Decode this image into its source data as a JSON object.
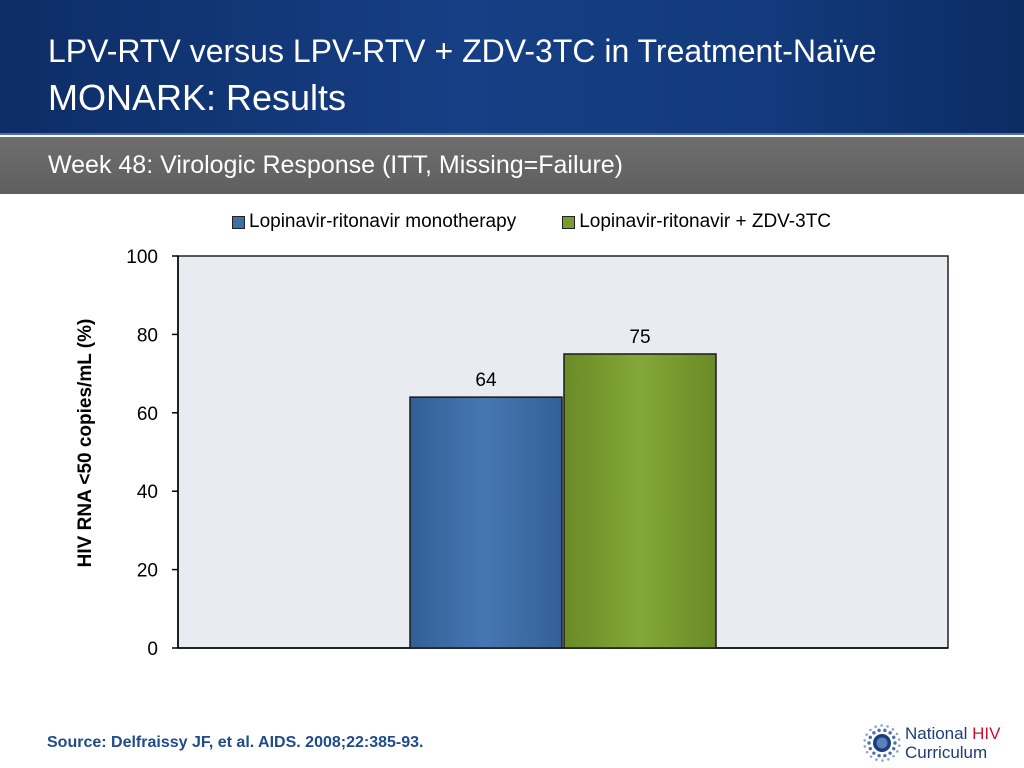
{
  "header": {
    "title_line1": "LPV-RTV versus LPV-RTV + ZDV-3TC in Treatment-Naïve",
    "title_line2": "MONARK: Results",
    "subtitle": "Week 48: Virologic Response (ITT, Missing=Failure)"
  },
  "chart_data": {
    "type": "bar",
    "title": "",
    "xlabel": "",
    "ylabel": "HIV RNA <50 copies/mL (%)",
    "ylim": [
      0,
      100
    ],
    "yticks": [
      0,
      20,
      40,
      60,
      80,
      100
    ],
    "grid": false,
    "legend_position": "top",
    "categories": [
      ""
    ],
    "series": [
      {
        "name": "Lopinavir-ritonavir monotherapy",
        "values": [
          64
        ],
        "color": "#3e6fa8"
      },
      {
        "name": "Lopinavir-ritonavir + ZDV-3TC",
        "values": [
          75
        ],
        "color": "#7a9c2f"
      }
    ],
    "plot_background": "#e8ebf0"
  },
  "footer": {
    "source": "Source: Delfraissy JF, et al. AIDS. 2008;22:385-93.",
    "logo_word1": "National",
    "logo_word2": "HIV",
    "logo_word3": "Curriculum",
    "logo_icon": "starburst-logo-icon"
  }
}
